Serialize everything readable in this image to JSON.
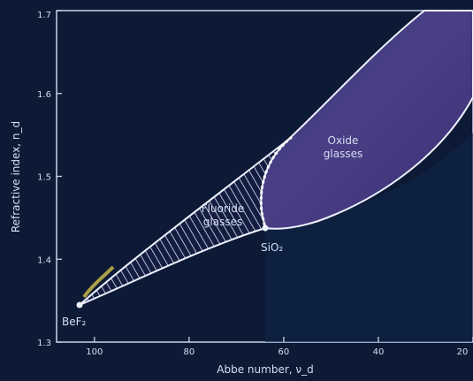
{
  "colors": {
    "background": "#0d1a36",
    "axis": "#c8d2ec",
    "boundary": "#eef2ff",
    "text": "#d6def2",
    "hatch": "#dde4fa",
    "oxide_fill": "#4b3f86",
    "oxide_dark": "#3a3174",
    "fluoride_fill": "#4a4a8a",
    "lower_field": "#0f2548",
    "accent": "#c8b84a"
  },
  "axes": {
    "xlabel": "Abbe number, ν_d",
    "ylabel": "Refractive index, n_d",
    "xticks": [
      {
        "value": 100,
        "label": "100"
      },
      {
        "value": 80,
        "label": "80"
      },
      {
        "value": 60,
        "label": "60"
      },
      {
        "value": 40,
        "label": "40"
      },
      {
        "value": 20,
        "label": "20"
      }
    ],
    "yticks": [
      {
        "value": 1.3,
        "label": "1.3"
      },
      {
        "value": 1.4,
        "label": "1.4"
      },
      {
        "value": 1.5,
        "label": "1.5"
      },
      {
        "value": 1.6,
        "label": "1.6"
      },
      {
        "value": 1.7,
        "label": "1.7"
      }
    ],
    "xlim": [
      108,
      20
    ],
    "ylim": [
      1.3,
      1.7
    ]
  },
  "labels": {
    "oxide": [
      "Oxide",
      "glasses"
    ],
    "fluoride": [
      "Fluoride",
      "glasses"
    ],
    "bef2": "BeF₂",
    "sio2": "SiO₂"
  }
}
